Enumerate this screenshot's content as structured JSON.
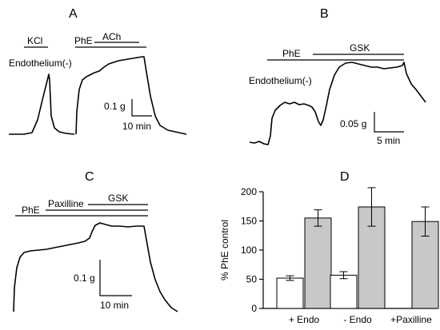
{
  "panels": {
    "A": {
      "letter": "A",
      "label_kcl": "KCl",
      "label_phe": "PhE",
      "label_ach": "ACh",
      "label_endo": "Endothelium(-)",
      "scale_y": "0.1 g",
      "scale_x": "10 min"
    },
    "B": {
      "letter": "B",
      "label_phe": "PhE",
      "label_gsk": "GSK",
      "label_endo": "Endothelium(-)",
      "scale_y": "0.05 g",
      "scale_x": "5 min"
    },
    "C": {
      "letter": "C",
      "label_phe": "PhE",
      "label_pax": "Paxilline",
      "label_gsk": "GSK",
      "scale_y": "0.1 g",
      "scale_x": "10 min"
    },
    "D": {
      "letter": "D"
    }
  },
  "chart_data": {
    "type": "bar",
    "ylabel": "% PhE control",
    "ylim": [
      0,
      200
    ],
    "yticks": [
      0,
      50,
      100,
      150,
      200
    ],
    "categories": [
      "+ Endo",
      "- Endo",
      "+Paxilline"
    ],
    "series": [
      {
        "color": "#ffffff",
        "values": [
          52,
          57,
          null
        ],
        "errors": [
          4,
          6,
          null
        ]
      },
      {
        "color": "#c8c8c8",
        "values": [
          155,
          174,
          149
        ],
        "errors": [
          14,
          33,
          25
        ]
      }
    ]
  }
}
